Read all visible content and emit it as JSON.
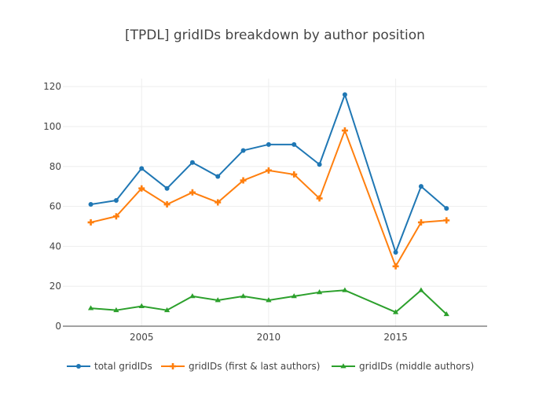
{
  "chart_data": {
    "type": "line",
    "title": "[TPDL] gridIDs breakdown by author position",
    "xlabel": "",
    "ylabel": "",
    "x": [
      2003,
      2004,
      2005,
      2006,
      2007,
      2008,
      2009,
      2010,
      2011,
      2012,
      2013,
      2015,
      2016,
      2017
    ],
    "xlim": [
      2001.9,
      2018.6
    ],
    "ylim": [
      0,
      124
    ],
    "x_ticks": [
      2005,
      2010,
      2015
    ],
    "y_ticks": [
      0,
      20,
      40,
      60,
      80,
      100,
      120
    ],
    "grid": true,
    "legend_position": "bottom",
    "series": [
      {
        "name": "total gridIDs",
        "color": "#1f77b4",
        "marker": "circle",
        "values": [
          61,
          63,
          79,
          69,
          82,
          75,
          88,
          91,
          91,
          81,
          116,
          37,
          70,
          59
        ]
      },
      {
        "name": "gridIDs (first & last authors)",
        "color": "#ff7f0e",
        "marker": "cross",
        "values": [
          52,
          55,
          69,
          61,
          67,
          62,
          73,
          78,
          76,
          64,
          98,
          30,
          52,
          53
        ]
      },
      {
        "name": "gridIDs (middle authors)",
        "color": "#2ca02c",
        "marker": "triangle-up",
        "values": [
          9,
          8,
          10,
          8,
          15,
          13,
          15,
          13,
          15,
          17,
          18,
          7,
          18,
          6
        ]
      }
    ]
  }
}
